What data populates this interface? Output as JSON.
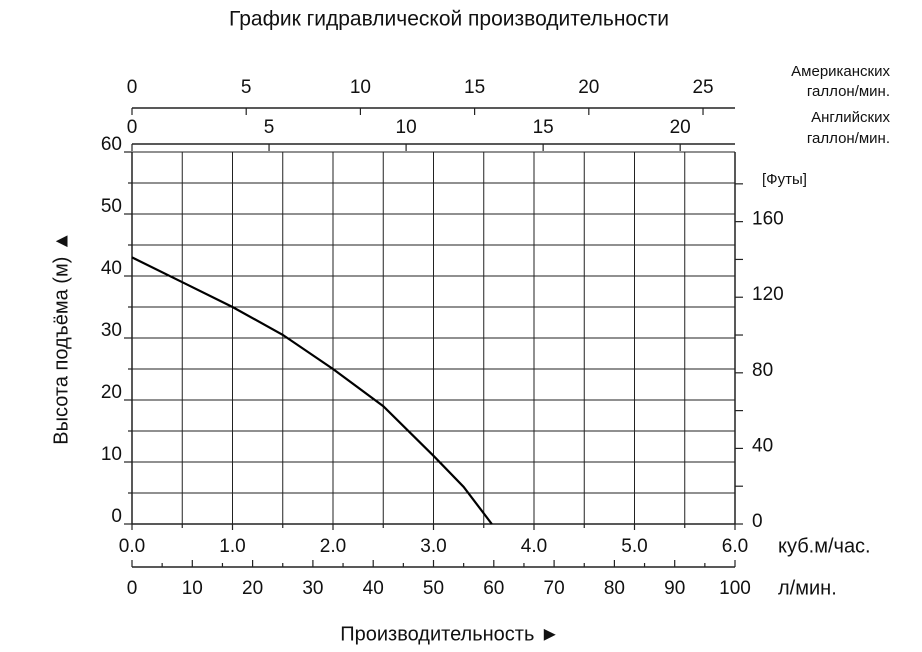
{
  "chart_data": {
    "type": "line",
    "title": "График гидравлической производительности",
    "x_label": "Производительность ►",
    "y_label": "Высота подъёма (м) ▲",
    "x_unit": "куб.м/час.",
    "x": [
      0,
      0.5,
      1.0,
      1.5,
      2.0,
      2.5,
      3.0,
      3.3,
      3.58
    ],
    "values": [
      43,
      39,
      35,
      30.5,
      25,
      19,
      11,
      6,
      0
    ],
    "color": "#000000",
    "xlim": [
      0,
      6
    ],
    "xticks": [
      {
        "value": 0,
        "label": "0.0"
      },
      {
        "value": 1,
        "label": "1.0"
      },
      {
        "value": 2,
        "label": "2.0"
      },
      {
        "value": 3,
        "label": "3.0"
      },
      {
        "value": 4,
        "label": "4.0"
      },
      {
        "value": 5,
        "label": "5.0"
      },
      {
        "value": 6,
        "label": "6.0"
      }
    ],
    "xminor": [
      0.5,
      1.5,
      2.5,
      3.5,
      4.5,
      5.5
    ],
    "ylim": [
      0,
      60
    ],
    "yticks": [
      0,
      10,
      20,
      30,
      40,
      50,
      60
    ],
    "yminor": [
      5,
      15,
      25,
      35,
      45,
      55
    ],
    "grid": true,
    "x2": {
      "label": "л/мин.",
      "lim": [
        0,
        100
      ],
      "ticks": [
        0,
        10,
        20,
        30,
        40,
        50,
        60,
        70,
        80,
        90,
        100
      ],
      "minor": [
        5,
        15,
        25,
        35,
        45,
        55,
        65,
        75,
        85,
        95
      ]
    },
    "x_us": {
      "label": [
        "Американских",
        "галлон/мин."
      ],
      "lim": [
        0,
        26.4
      ],
      "ticks": [
        0,
        5,
        10,
        15,
        20,
        25
      ]
    },
    "x_uk": {
      "label": [
        "Английских",
        "галлон/мин."
      ],
      "lim": [
        0,
        22
      ],
      "ticks": [
        0,
        5,
        10,
        15,
        20
      ]
    },
    "y2": {
      "label": "[Футы]",
      "lim": [
        0,
        196.85
      ],
      "ticks": [
        0,
        40,
        80,
        120,
        160
      ],
      "minor": [
        20,
        60,
        100,
        140,
        180
      ]
    }
  }
}
